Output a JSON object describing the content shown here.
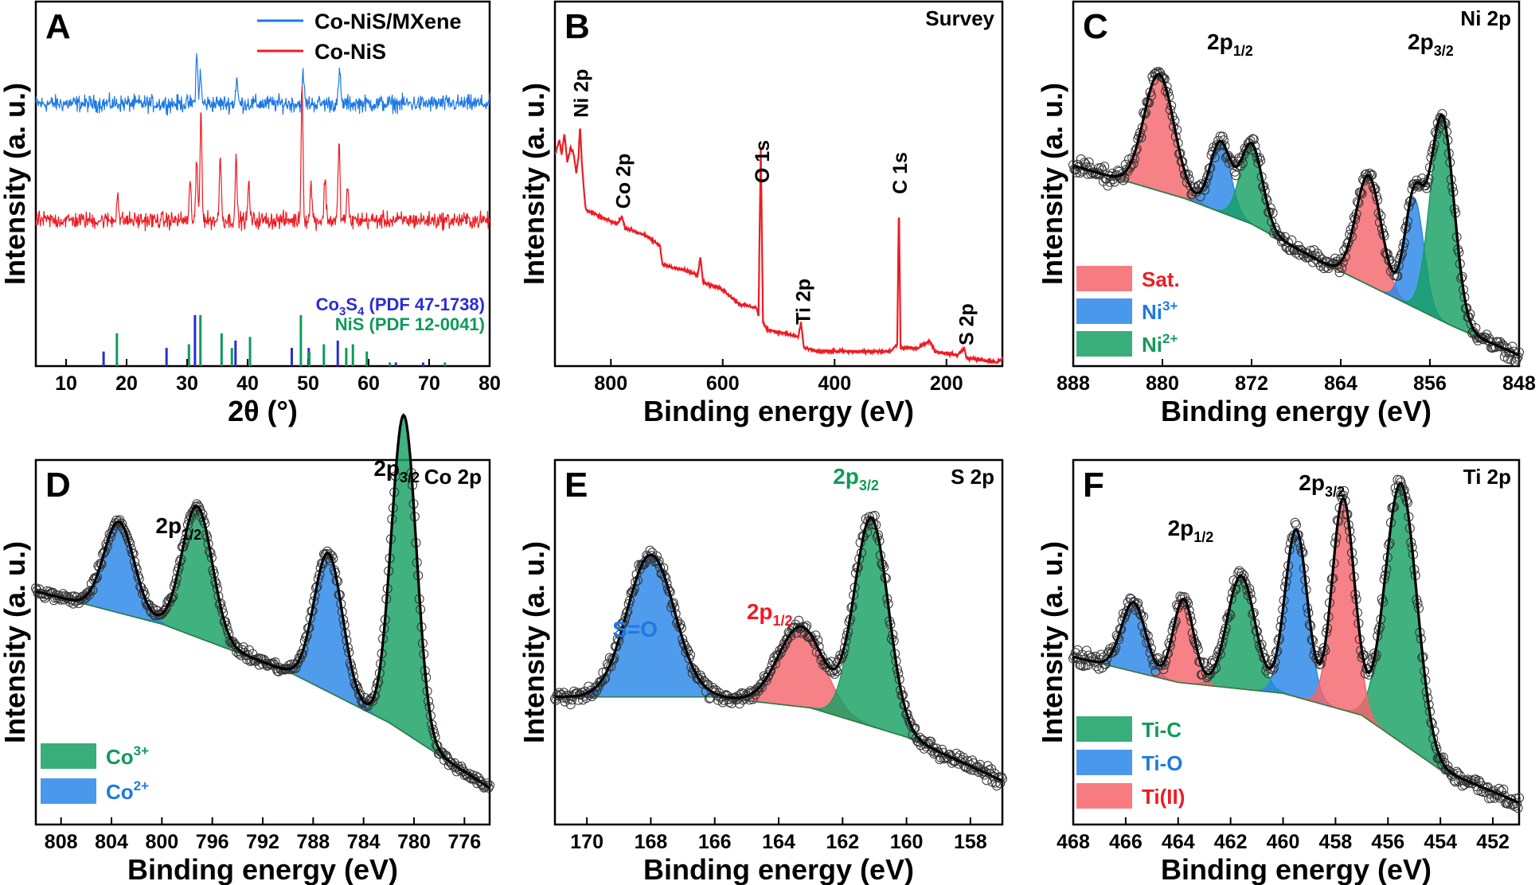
{
  "colors": {
    "red": "#ec1c24",
    "blue": "#1d79e5",
    "green": "#0f9a5a",
    "navy": "#2b2bd6",
    "black": "#000000",
    "sat_fill": "#f4656b",
    "ni3_fill": "#2a86e8",
    "ni2_fill": "#16a063"
  },
  "chart_data": [
    {
      "panel": "A",
      "type": "line",
      "xlabel": "2θ (°)",
      "ylabel": "Intensity (a. u.)",
      "xlim": [
        5,
        80
      ],
      "xticks": [
        "10",
        "20",
        "30",
        "40",
        "50",
        "60",
        "70",
        "80"
      ],
      "legend": [
        {
          "name": "Co-NiS/MXene",
          "color": "#1d79e5"
        },
        {
          "name": "Co-NiS",
          "color": "#ec1c24"
        }
      ],
      "series": [
        {
          "name": "Co-NiS/MXene",
          "baseline": 0.72,
          "noise": 0.035,
          "peaks": [
            [
              31.6,
              0.13
            ],
            [
              32.2,
              0.08
            ],
            [
              38.2,
              0.07
            ],
            [
              49.2,
              0.08
            ],
            [
              55.2,
              0.09
            ]
          ]
        },
        {
          "name": "Co-NiS",
          "baseline": 0.4,
          "noise": 0.035,
          "peaks": [
            [
              18.5,
              0.08
            ],
            [
              30.5,
              0.1
            ],
            [
              31.6,
              0.16
            ],
            [
              32.3,
              0.3
            ],
            [
              35.5,
              0.18
            ],
            [
              38.1,
              0.16
            ],
            [
              40.2,
              0.1
            ],
            [
              49.0,
              0.36
            ],
            [
              50.5,
              0.1
            ],
            [
              52.8,
              0.12
            ],
            [
              55.1,
              0.21
            ],
            [
              56.5,
              0.09
            ]
          ]
        }
      ],
      "references": [
        {
          "name": "Co3S4 (PDF 47-1738)",
          "color": "#2b2bd6",
          "lines": [
            [
              16.2,
              0.04
            ],
            [
              26.6,
              0.05
            ],
            [
              31.3,
              0.14
            ],
            [
              38.0,
              0.07
            ],
            [
              47.3,
              0.05
            ],
            [
              50.1,
              0.05
            ],
            [
              54.9,
              0.07
            ],
            [
              64.5,
              0.01
            ],
            [
              69.0,
              0.01
            ]
          ]
        },
        {
          "name": "NiS (PDF 12-0041)",
          "color": "#0f9a5a",
          "lines": [
            [
              18.4,
              0.09
            ],
            [
              30.3,
              0.06
            ],
            [
              32.2,
              0.14
            ],
            [
              35.7,
              0.09
            ],
            [
              37.4,
              0.05
            ],
            [
              40.4,
              0.08
            ],
            [
              48.8,
              0.14
            ],
            [
              50.2,
              0.04
            ],
            [
              52.6,
              0.06
            ],
            [
              56.3,
              0.05
            ],
            [
              57.4,
              0.06
            ],
            [
              59.7,
              0.04
            ],
            [
              63.5,
              0.01
            ],
            [
              72.6,
              0.01
            ]
          ]
        }
      ],
      "ref_labels": {
        "co3s4": "Co",
        "co3s4_sub1": "3",
        "co3s4_s": "S",
        "co3s4_sub2": "4",
        "co3s4_rest": " (PDF 47-1738)",
        "nis": "NiS (PDF 12-0041)"
      }
    },
    {
      "panel": "B",
      "type": "line",
      "title": "Survey",
      "xlabel": "Binding energy (eV)",
      "ylabel": "Intensity (a. u.)",
      "xlim": [
        900,
        100
      ],
      "xticks": [
        "800",
        "600",
        "400",
        "200"
      ],
      "trace": [
        [
          900,
          0.58
        ],
        [
          892,
          0.62
        ],
        [
          888,
          0.58
        ],
        [
          883,
          0.64
        ],
        [
          878,
          0.56
        ],
        [
          872,
          0.6
        ],
        [
          866,
          0.58
        ],
        [
          862,
          0.53
        ],
        [
          858,
          0.57
        ],
        [
          855,
          0.66
        ],
        [
          852,
          0.56
        ],
        [
          848,
          0.48
        ],
        [
          845,
          0.43
        ],
        [
          820,
          0.41
        ],
        [
          790,
          0.39
        ],
        [
          780,
          0.41
        ],
        [
          775,
          0.38
        ],
        [
          740,
          0.36
        ],
        [
          712,
          0.33
        ],
        [
          708,
          0.28
        ],
        [
          690,
          0.27
        ],
        [
          660,
          0.26
        ],
        [
          645,
          0.25
        ],
        [
          640,
          0.3
        ],
        [
          635,
          0.23
        ],
        [
          600,
          0.21
        ],
        [
          570,
          0.17
        ],
        [
          540,
          0.16
        ],
        [
          536,
          0.14
        ],
        [
          532,
          0.6
        ],
        [
          528,
          0.12
        ],
        [
          520,
          0.1
        ],
        [
          490,
          0.09
        ],
        [
          465,
          0.08
        ],
        [
          460,
          0.12
        ],
        [
          455,
          0.05
        ],
        [
          430,
          0.04
        ],
        [
          400,
          0.04
        ],
        [
          350,
          0.04
        ],
        [
          300,
          0.04
        ],
        [
          288,
          0.06
        ],
        [
          285,
          0.45
        ],
        [
          282,
          0.05
        ],
        [
          250,
          0.05
        ],
        [
          230,
          0.07
        ],
        [
          220,
          0.04
        ],
        [
          180,
          0.03
        ],
        [
          168,
          0.05
        ],
        [
          164,
          0.02
        ],
        [
          150,
          0.02
        ],
        [
          110,
          0.01
        ],
        [
          100,
          0.02
        ]
      ],
      "annotations": [
        {
          "text": "Ni 2p",
          "x": 855
        },
        {
          "text": "Co 2p",
          "x": 780
        },
        {
          "text": "O 1s",
          "x": 531
        },
        {
          "text": "Ti 2p",
          "x": 458
        },
        {
          "text": "C 1s",
          "x": 285
        },
        {
          "text": "S 2p",
          "x": 166
        }
      ]
    },
    {
      "panel": "C",
      "type": "area",
      "title": "Ni 2p",
      "xlabel": "Binding energy (eV)",
      "ylabel": "Intensity (a. u.)",
      "xlim": [
        888,
        848
      ],
      "xticks": [
        "888",
        "880",
        "872",
        "864",
        "856",
        "848"
      ],
      "background": [
        [
          888,
          0.55
        ],
        [
          878,
          0.46
        ],
        [
          872,
          0.39
        ],
        [
          866,
          0.29
        ],
        [
          860,
          0.2
        ],
        [
          854,
          0.11
        ],
        [
          848,
          0.03
        ]
      ],
      "components": [
        {
          "name": "Sat.",
          "color": "#f4656b",
          "peaks": [
            [
              880.3,
              0.32,
              1.9
            ],
            [
              861.5,
              0.3,
              1.6
            ]
          ]
        },
        {
          "name": "Ni3+",
          "color": "#2a86e8",
          "peaks": [
            [
              874.8,
              0.19,
              1.3
            ],
            [
              857.4,
              0.3,
              1.2
            ]
          ]
        },
        {
          "name": "Ni2+",
          "color": "#16a063",
          "peaks": [
            [
              872.0,
              0.22,
              1.4
            ],
            [
              854.9,
              0.56,
              1.5
            ]
          ]
        }
      ],
      "labels": {
        "2p12": "2p",
        "2p12_sub": "1/2",
        "2p32": "2p",
        "2p32_sub": "3/2"
      },
      "legend": [
        {
          "name": "Sat.",
          "sup": "",
          "color": "#f4656b",
          "text_color": "#ec1c24"
        },
        {
          "name": "Ni",
          "sup": "3+",
          "color": "#2a86e8",
          "text_color": "#1d79e5"
        },
        {
          "name": "Ni",
          "sup": "2+",
          "color": "#16a063",
          "text_color": "#0f9a5a"
        }
      ]
    },
    {
      "panel": "D",
      "type": "area",
      "title": "Co 2p",
      "xlabel": "Binding energy (eV)",
      "ylabel": "Intensity (a. u.)",
      "xlim": [
        810,
        774
      ],
      "xticks": [
        "808",
        "804",
        "800",
        "796",
        "792",
        "788",
        "784",
        "780",
        "776"
      ],
      "background": [
        [
          810,
          0.64
        ],
        [
          800,
          0.55
        ],
        [
          790,
          0.42
        ],
        [
          782,
          0.28
        ],
        [
          774,
          0.1
        ]
      ],
      "components": [
        {
          "name": "Co3+",
          "color": "#16a063",
          "peaks": [
            [
              797.2,
              0.36,
              1.7
            ],
            [
              780.8,
              0.87,
              1.4
            ]
          ]
        },
        {
          "name": "Co2+",
          "color": "#2a86e8",
          "peaks": [
            [
              803.4,
              0.25,
              1.7
            ],
            [
              786.8,
              0.38,
              1.6
            ]
          ]
        }
      ],
      "labels": {
        "2p12": "2p",
        "2p12_sub": "1/2",
        "2p32": "2p",
        "2p32_sub": "3/2"
      },
      "legend": [
        {
          "name": "Co",
          "sup": "3+",
          "color": "#16a063",
          "text_color": "#0f9a5a"
        },
        {
          "name": "Co",
          "sup": "2+",
          "color": "#2a86e8",
          "text_color": "#1d79e5"
        }
      ]
    },
    {
      "panel": "E",
      "type": "area",
      "title": "S 2p",
      "xlabel": "Binding energy (eV)",
      "ylabel": "Intensity (a. u.)",
      "xlim": [
        171,
        157
      ],
      "xticks": [
        "170",
        "168",
        "166",
        "164",
        "162",
        "160",
        "158"
      ],
      "background": [
        [
          171,
          0.35
        ],
        [
          166,
          0.35
        ],
        [
          163,
          0.32
        ],
        [
          160,
          0.24
        ],
        [
          157,
          0.12
        ]
      ],
      "components": [
        {
          "name": "S=O",
          "color": "#2a86e8",
          "peaks": [
            [
              168.0,
              0.39,
              1.05
            ]
          ]
        },
        {
          "name": "2p1/2",
          "color": "#f4656b",
          "peaks": [
            [
              163.3,
              0.22,
              1.0
            ]
          ]
        },
        {
          "name": "2p3/2",
          "color": "#16a063",
          "peaks": [
            [
              161.1,
              0.57,
              0.75
            ]
          ]
        }
      ],
      "labels": {
        "so": "S=O",
        "2p12": "2p",
        "2p12_sub": "1/2",
        "2p32": "2p",
        "2p32_sub": "3/2"
      }
    },
    {
      "panel": "F",
      "type": "area",
      "title": "Ti 2p",
      "xlabel": "Binding energy (eV)",
      "ylabel": "Intensity (a. u.)",
      "xlim": [
        468,
        451
      ],
      "xticks": [
        "468",
        "466",
        "464",
        "462",
        "460",
        "458",
        "456",
        "454",
        "452"
      ],
      "background": [
        [
          468,
          0.46
        ],
        [
          464,
          0.39
        ],
        [
          460,
          0.36
        ],
        [
          457,
          0.3
        ],
        [
          454,
          0.15
        ],
        [
          451,
          0.06
        ]
      ],
      "components": [
        {
          "name": "Ti-C",
          "color": "#16a063",
          "peaks": [
            [
              461.6,
              0.31,
              0.75
            ],
            [
              455.5,
              0.71,
              0.85
            ]
          ]
        },
        {
          "name": "Ti-O",
          "color": "#2a86e8",
          "peaks": [
            [
              465.7,
              0.19,
              0.65
            ],
            [
              459.5,
              0.46,
              0.6
            ]
          ]
        },
        {
          "name": "Ti(II)",
          "color": "#f4656b",
          "peaks": [
            [
              463.8,
              0.23,
              0.55
            ],
            [
              457.7,
              0.58,
              0.6
            ]
          ]
        }
      ],
      "labels": {
        "2p12": "2p",
        "2p12_sub": "1/2",
        "2p32": "2p",
        "2p32_sub": "3/2"
      },
      "legend": [
        {
          "name": "Ti-C",
          "sup": "",
          "color": "#16a063",
          "text_color": "#0f9a5a"
        },
        {
          "name": "Ti-O",
          "sup": "",
          "color": "#2a86e8",
          "text_color": "#1d79e5"
        },
        {
          "name": "Ti(II)",
          "sup": "",
          "color": "#f4656b",
          "text_color": "#ec1c24"
        }
      ]
    }
  ]
}
